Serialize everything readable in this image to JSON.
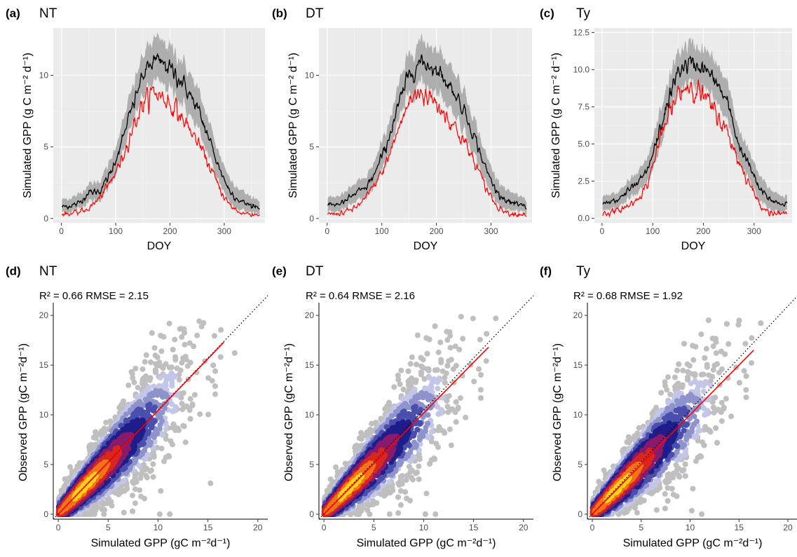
{
  "figure": {
    "panels": [
      {
        "letter": "(a)",
        "title": "NT"
      },
      {
        "letter": "(b)",
        "title": "DT"
      },
      {
        "letter": "(c)",
        "title": "Ty"
      },
      {
        "letter": "(d)",
        "title": "NT",
        "stats": "R² = 0.66  RMSE = 2.15"
      },
      {
        "letter": "(e)",
        "title": "DT",
        "stats": "R² = 0.64  RMSE = 2.16"
      },
      {
        "letter": "(f)",
        "title": "Ty",
        "stats": "R² = 0.68  RMSE = 1.92"
      }
    ],
    "colors": {
      "observed_line": "#000000",
      "simulated_line": "#ff0000",
      "uncertainty_band": "#999999",
      "panel_background": "#ebebeb",
      "scatter_low_density": "#bfbfbf",
      "density_scale": [
        "#c3c6e6",
        "#8f93cc",
        "#4a4fae",
        "#1f1d8a",
        "#8a1a6a",
        "#d8271e",
        "#f2741b",
        "#ffd21c"
      ],
      "fit_line": "#ff0000",
      "identity_line": "#000000"
    }
  },
  "chart_data": [
    {
      "type": "line",
      "panel": "a",
      "title": "NT",
      "xlabel": "DOY",
      "ylabel": "Simulated GPP (g C m⁻² d⁻¹)",
      "xlim": [
        -15,
        375
      ],
      "ylim": [
        -0.3,
        13.3
      ],
      "xticks": [
        0,
        100,
        200,
        300
      ],
      "yticks": [
        0,
        5,
        10
      ],
      "ytick_labels": [
        "0",
        "5",
        "10"
      ],
      "grid": true,
      "x": [
        1,
        30,
        50,
        70,
        90,
        110,
        130,
        150,
        170,
        190,
        210,
        230,
        250,
        270,
        290,
        310,
        330,
        350,
        365
      ],
      "series": [
        {
          "role": "band_upper",
          "values": [
            1.3,
            1.6,
            2.4,
            2.6,
            4.0,
            6.3,
            9.0,
            11.4,
            12.5,
            12.3,
            11.6,
            10.6,
            9.1,
            7.0,
            4.6,
            2.8,
            2.0,
            1.5,
            1.3
          ]
        },
        {
          "role": "band_lower",
          "values": [
            0.4,
            0.6,
            1.2,
            1.3,
            2.3,
            4.2,
            6.5,
            8.6,
            9.5,
            9.3,
            8.6,
            7.6,
            6.3,
            4.5,
            2.6,
            1.1,
            0.6,
            0.4,
            0.4
          ]
        },
        {
          "role": "black_line",
          "values": [
            0.8,
            1.0,
            1.8,
            1.9,
            3.1,
            5.2,
            7.7,
            10.0,
            11.0,
            10.8,
            10.1,
            9.1,
            7.7,
            5.8,
            3.6,
            1.9,
            1.2,
            0.9,
            0.8
          ]
        },
        {
          "role": "red_line",
          "values": [
            0.3,
            0.4,
            0.7,
            1.4,
            2.5,
            4.0,
            6.2,
            8.0,
            8.9,
            8.4,
            7.6,
            6.6,
            5.4,
            3.9,
            2.2,
            0.9,
            0.4,
            0.3,
            0.3
          ]
        }
      ]
    },
    {
      "type": "line",
      "panel": "b",
      "title": "DT",
      "xlabel": "DOY",
      "ylabel": "Simulated GPP (g C m⁻² d⁻¹)",
      "xlim": [
        -15,
        375
      ],
      "ylim": [
        -0.3,
        13.3
      ],
      "xticks": [
        0,
        100,
        200,
        300
      ],
      "yticks": [
        0,
        5,
        10
      ],
      "ytick_labels": [
        "0",
        "5",
        "10"
      ],
      "grid": true,
      "x": [
        1,
        30,
        50,
        70,
        90,
        110,
        130,
        150,
        170,
        190,
        210,
        230,
        250,
        270,
        290,
        310,
        330,
        350,
        365
      ],
      "series": [
        {
          "role": "band_upper",
          "values": [
            1.4,
            1.7,
            2.4,
            2.8,
            4.2,
            6.4,
            9.1,
            11.5,
            12.4,
            12.2,
            11.5,
            10.5,
            9.0,
            6.9,
            4.5,
            2.8,
            2.0,
            1.5,
            1.3
          ]
        },
        {
          "role": "band_lower",
          "values": [
            0.4,
            0.6,
            1.1,
            1.4,
            2.4,
            4.2,
            6.6,
            8.7,
            9.5,
            9.2,
            8.5,
            7.5,
            6.2,
            4.4,
            2.5,
            1.1,
            0.6,
            0.4,
            0.4
          ]
        },
        {
          "role": "black_line",
          "values": [
            0.9,
            1.1,
            1.7,
            2.1,
            3.3,
            5.3,
            7.8,
            10.1,
            10.9,
            10.7,
            10.0,
            9.0,
            7.6,
            5.7,
            3.5,
            1.9,
            1.2,
            0.9,
            0.8
          ]
        },
        {
          "role": "red_line",
          "values": [
            0.3,
            0.4,
            0.7,
            1.4,
            2.5,
            4.0,
            6.2,
            8.1,
            8.9,
            8.4,
            7.6,
            6.6,
            5.4,
            3.9,
            2.2,
            0.9,
            0.4,
            0.3,
            0.3
          ]
        }
      ]
    },
    {
      "type": "line",
      "panel": "c",
      "title": "Ty",
      "xlabel": "DOY",
      "ylabel": "Simulated GPP (g C m⁻² d⁻¹)",
      "xlim": [
        -15,
        375
      ],
      "ylim": [
        -0.3,
        12.8
      ],
      "xticks": [
        0,
        100,
        200,
        300
      ],
      "yticks": [
        0,
        2.5,
        5,
        7.5,
        10,
        12.5
      ],
      "ytick_labels": [
        "0.0",
        "2.5",
        "5.0",
        "7.5",
        "10.0",
        "12.5"
      ],
      "grid": true,
      "x": [
        1,
        30,
        50,
        70,
        90,
        110,
        130,
        150,
        170,
        190,
        210,
        230,
        250,
        270,
        290,
        310,
        330,
        350,
        365
      ],
      "series": [
        {
          "role": "band_upper",
          "values": [
            1.4,
            1.7,
            2.4,
            3.0,
            4.0,
            6.6,
            9.1,
            11.2,
            11.7,
            11.6,
            11.1,
            10.2,
            8.8,
            6.0,
            4.5,
            2.9,
            2.0,
            1.6,
            1.5
          ]
        },
        {
          "role": "band_lower",
          "values": [
            0.4,
            0.7,
            1.2,
            1.6,
            2.4,
            4.2,
            6.6,
            8.6,
            9.0,
            8.9,
            8.5,
            7.6,
            6.2,
            3.8,
            2.6,
            1.2,
            0.6,
            0.5,
            0.5
          ]
        },
        {
          "role": "black_line",
          "values": [
            0.9,
            1.2,
            1.8,
            2.3,
            3.2,
            5.4,
            7.8,
            9.9,
            10.4,
            10.3,
            9.8,
            8.9,
            7.5,
            4.9,
            3.6,
            2.0,
            1.3,
            1.0,
            1.0
          ]
        },
        {
          "role": "red_line",
          "values": [
            0.3,
            0.5,
            0.8,
            1.3,
            2.3,
            4.8,
            6.8,
            8.3,
            9.0,
            8.6,
            7.8,
            6.8,
            5.6,
            3.8,
            2.4,
            1.0,
            0.4,
            0.3,
            0.3
          ]
        }
      ]
    },
    {
      "type": "scatter",
      "panel": "d",
      "title": "NT",
      "annotation": "R² = 0.66  RMSE = 2.15",
      "r2": 0.66,
      "rmse": 2.15,
      "xlabel": "Simulated GPP (gC m⁻²d⁻¹)",
      "ylabel": "Observed GPP (gC m⁻²d⁻¹)",
      "xlim": [
        -0.5,
        21
      ],
      "ylim": [
        -0.5,
        21
      ],
      "xticks": [
        0,
        5,
        10,
        15,
        20
      ],
      "yticks": [
        0,
        5,
        10,
        15,
        20
      ],
      "grid": false,
      "fit_line": {
        "x": [
          0,
          16.6
        ],
        "y": [
          0.0,
          17.3
        ]
      },
      "identity_line": {
        "x": [
          -0.5,
          21
        ],
        "y": [
          -0.5,
          21
        ]
      },
      "density_core": {
        "points": [
          [
            1.5,
            1.6
          ],
          [
            3,
            3.1
          ],
          [
            4.5,
            4.7
          ],
          [
            6,
            6.3
          ],
          [
            7.5,
            7.8
          ]
        ]
      }
    },
    {
      "type": "scatter",
      "panel": "e",
      "title": "DT",
      "annotation": "R² = 0.64  RMSE = 2.16",
      "r2": 0.64,
      "rmse": 2.16,
      "xlabel": "Simulated GPP (gC m⁻²d⁻¹)",
      "ylabel": "Observed GPP (gC m⁻²d⁻¹)",
      "xlim": [
        -0.5,
        21
      ],
      "ylim": [
        -0.5,
        21
      ],
      "xticks": [
        0,
        5,
        10,
        15,
        20
      ],
      "yticks": [
        0,
        5,
        10,
        15,
        20
      ],
      "grid": false,
      "fit_line": {
        "x": [
          0,
          16.5
        ],
        "y": [
          0.0,
          16.8
        ]
      },
      "identity_line": {
        "x": [
          -0.5,
          21
        ],
        "y": [
          -0.5,
          21
        ]
      },
      "density_core": {
        "points": [
          [
            1.5,
            1.6
          ],
          [
            3,
            3.1
          ],
          [
            4.5,
            4.6
          ],
          [
            6,
            6.2
          ],
          [
            7.5,
            7.7
          ]
        ]
      }
    },
    {
      "type": "scatter",
      "panel": "f",
      "title": "Ty",
      "annotation": "R² = 0.68  RMSE = 1.92",
      "r2": 0.68,
      "rmse": 1.92,
      "xlabel": "Simulated GPP (gC m⁻²d⁻¹)",
      "ylabel": "Observed GPP (gC m⁻²d⁻¹)",
      "xlim": [
        -0.5,
        21
      ],
      "ylim": [
        -0.5,
        21
      ],
      "xticks": [
        0,
        5,
        10,
        15,
        20
      ],
      "yticks": [
        0,
        5,
        10,
        15,
        20
      ],
      "grid": false,
      "fit_line": {
        "x": [
          0,
          16.5
        ],
        "y": [
          0.0,
          16.5
        ]
      },
      "identity_line": {
        "x": [
          -0.5,
          21
        ],
        "y": [
          -0.5,
          21
        ]
      },
      "density_core": {
        "points": [
          [
            1.5,
            1.5
          ],
          [
            3,
            3.0
          ],
          [
            4.5,
            4.5
          ],
          [
            6,
            6.0
          ],
          [
            7.5,
            7.5
          ]
        ]
      }
    }
  ]
}
